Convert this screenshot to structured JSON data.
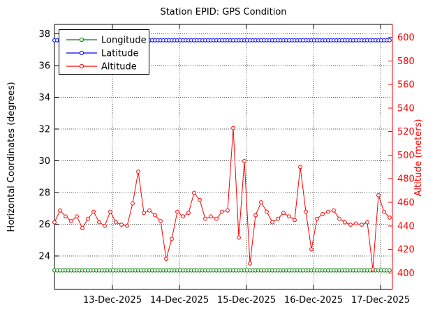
{
  "figure": {
    "background": "#ffffff",
    "kind": "MATLAB-style dual-axis time series figure"
  },
  "chart_data": {
    "type": "line",
    "title": "Station EPID: GPS Condition",
    "ylabel_left": "Horizontal Coordinates (degrees)",
    "ylabel_right": "Altitude (meters)",
    "xlim_days": [
      0,
      5.042
    ],
    "x_ticks": [
      {
        "label": "13-Dec-2025",
        "day": 0.865
      },
      {
        "label": "14-Dec-2025",
        "day": 1.865
      },
      {
        "label": "15-Dec-2025",
        "day": 2.865
      },
      {
        "label": "16-Dec-2025",
        "day": 3.865
      },
      {
        "label": "17-Dec-2025",
        "day": 4.865
      }
    ],
    "y_left": {
      "ticks": [
        24,
        26,
        28,
        30,
        32,
        34,
        36,
        38
      ],
      "lim": [
        21.9,
        38.6
      ],
      "color": "#000000",
      "grid": true
    },
    "y_right": {
      "ticks": [
        400,
        420,
        440,
        460,
        480,
        500,
        520,
        540,
        560,
        580,
        600
      ],
      "lim": [
        386,
        611
      ],
      "color": "#ff0000",
      "grid": false
    },
    "legend": {
      "position": "top-left",
      "entries": [
        "Longitude",
        "Latitude",
        "Altitude"
      ]
    },
    "series": [
      {
        "name": "Longitude",
        "axis": "left",
        "color": "#008000",
        "marker": "circle",
        "x_step_days": 0.041667,
        "n_points": 121,
        "constant_value_degrees": 23.1
      },
      {
        "name": "Latitude",
        "axis": "left",
        "color": "#0000ff",
        "marker": "circle",
        "x_step_days": 0.041667,
        "n_points": 121,
        "constant_value_degrees": 37.6
      },
      {
        "name": "Altitude",
        "axis": "right",
        "color": "#ff0000",
        "marker": "circle",
        "x_step_days": 0.083333,
        "values_meters": [
          443,
          453,
          448,
          444,
          448,
          438,
          446,
          452,
          443,
          440,
          452,
          443,
          441,
          440,
          459,
          486,
          451,
          453,
          449,
          444,
          412,
          429,
          452,
          448,
          451,
          468,
          462,
          446,
          448,
          446,
          452,
          453,
          523,
          430,
          495,
          408,
          449,
          460,
          452,
          443,
          446,
          451,
          448,
          445,
          490,
          452,
          420,
          446,
          450,
          452,
          453,
          446,
          443,
          441,
          442,
          441,
          443,
          403,
          466,
          452,
          447
        ]
      }
    ]
  }
}
